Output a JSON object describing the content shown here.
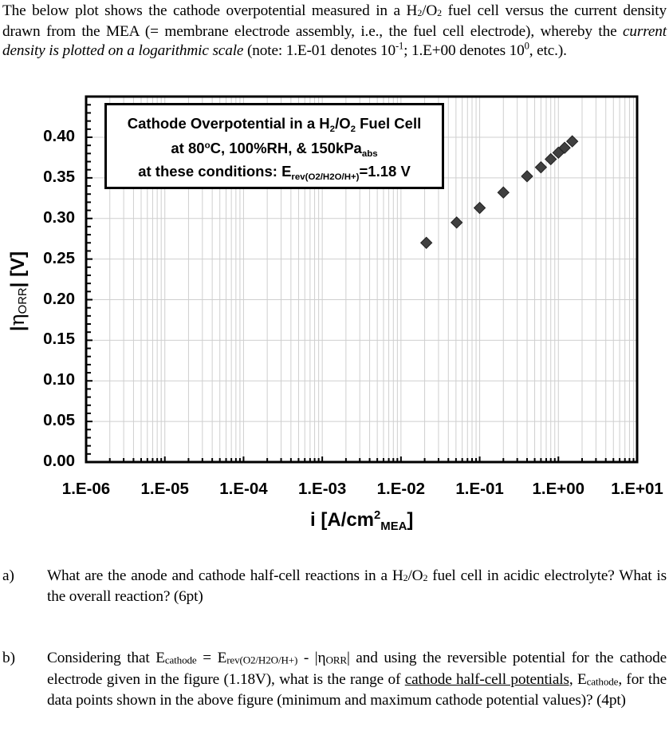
{
  "intro": {
    "part1": "The below plot shows the cathode overpotential measured in a H",
    "h_sub": "2",
    "slash_o": "/O",
    "o_sub": "2",
    "part2": " fuel cell versus the current density drawn from the MEA (= membrane electrode assembly, i.e., the fuel cell electrode), whereby the ",
    "italic": "current density is plotted on a logarithmic scale",
    "part3": " (note: 1.E-01 denotes 10",
    "exp1": "-1",
    "part4": "; 1.E+00 denotes 10",
    "exp2": "0",
    "part5": ", etc.)."
  },
  "legend": {
    "line1_main": "Cathode Overpotential in a H",
    "line1_sub1": "2",
    "line1_mid": "/O",
    "line1_sub2": "2",
    "line1_end": " Fuel Cell",
    "line2_a": "at 80",
    "line2_deg": "o",
    "line2_b": "C, 100%RH, & 150kPa",
    "line2_sub": "abs",
    "line3_a": "at these conditions: E",
    "line3_sub": "rev(O2/H2O/H+)",
    "line3_b": "=1.18 V"
  },
  "axes": {
    "y_label_bar_left": "|",
    "y_label_eta": "η",
    "y_label_sub": "ORR",
    "y_label_bar_right": "|",
    "y_label_unit": " [V]",
    "x_label_main": "i [A/cm",
    "x_label_sup": "2",
    "x_label_sub": "MEA",
    "x_label_end": "]",
    "y_ticks": [
      "0.00",
      "0.05",
      "0.10",
      "0.15",
      "0.20",
      "0.25",
      "0.30",
      "0.35",
      "0.40"
    ],
    "x_ticks": [
      "1.E-06",
      "1.E-05",
      "1.E-04",
      "1.E-03",
      "1.E-02",
      "1.E-01",
      "1.E+00",
      "1.E+01"
    ]
  },
  "chart_data": {
    "type": "scatter",
    "title": "Cathode Overpotential in a H2/O2 Fuel Cell at 80°C, 100%RH, & 150kPa_abs; at these conditions: E_rev(O2/H2O/H+)=1.18 V",
    "xlabel": "i [A/cm^2_MEA]",
    "ylabel": "|η_ORR| [V]",
    "x_scale": "log",
    "xlim": [
      1e-06,
      10
    ],
    "ylim": [
      0.0,
      0.45
    ],
    "y_tick_step": 0.05,
    "grid": true,
    "marker": "diamond",
    "marker_color": "#404040",
    "series": [
      {
        "name": "Cathode overpotential",
        "x": [
          0.021,
          0.051,
          0.1,
          0.2,
          0.4,
          0.6,
          0.8,
          1.0,
          1.2,
          1.5
        ],
        "y": [
          0.27,
          0.295,
          0.313,
          0.332,
          0.352,
          0.363,
          0.373,
          0.381,
          0.387,
          0.395
        ]
      }
    ]
  },
  "questions": [
    {
      "label": "a)",
      "text_a": "What are the anode and cathode half-cell reactions in a H",
      "sub1": "2",
      "text_b": "/O",
      "sub2": "2",
      "text_c": " fuel cell in acidic electrolyte? What is the overall reaction? (6pt)"
    },
    {
      "label": "b)",
      "t1": "Considering that E",
      "s1": "cathode",
      "t2": " = E",
      "s2": "rev(O2/H2O/H+)",
      "t3": " - |η",
      "s3": "ORR",
      "t4": "| and using the reversible potential for the cathode electrode given in the figure (1.18V), what is the range of ",
      "u1": "cathode half-cell potentials,",
      "t5": " E",
      "s4": "cathode",
      "t6": ", for the data points shown in the above figure (minimum and maximum cathode potential values)? (4pt)"
    }
  ]
}
